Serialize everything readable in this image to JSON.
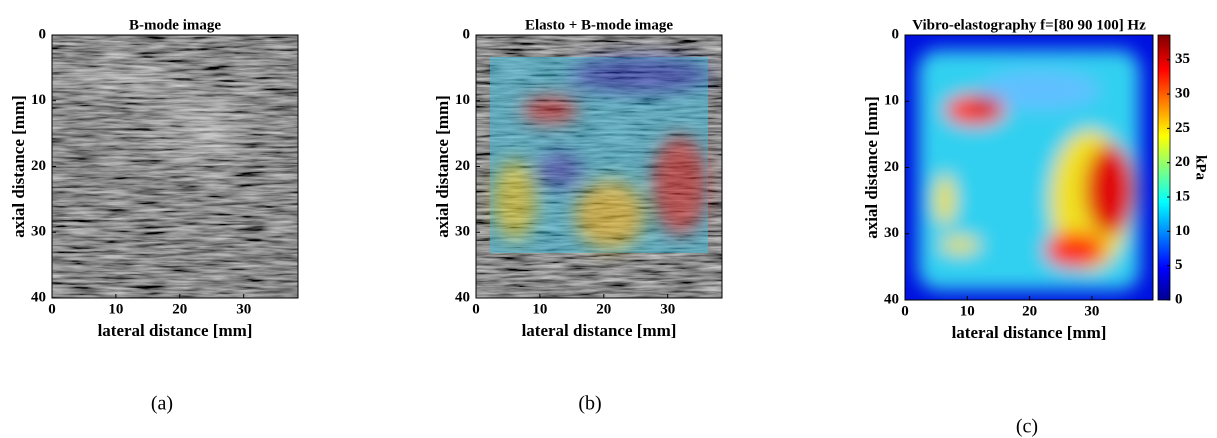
{
  "chart_data": [
    {
      "type": "image",
      "title": "B-mode image",
      "xlabel": "lateral distance [mm]",
      "ylabel": "axial distance [mm]",
      "xlim": [
        0,
        38.5
      ],
      "ylim": [
        0,
        40
      ],
      "xticks": [
        0,
        10,
        20,
        30
      ],
      "yticks": [
        0,
        10,
        20,
        30,
        40
      ],
      "caption": "(a)"
    },
    {
      "type": "image",
      "title": "Elasto + B-mode image",
      "xlabel": "lateral distance [mm]",
      "ylabel": "axial distance [mm]",
      "xlim": [
        0,
        38.5
      ],
      "ylim": [
        0,
        40
      ],
      "xticks": [
        0,
        10,
        20,
        30
      ],
      "yticks": [
        0,
        10,
        20,
        30,
        40
      ],
      "caption": "(b)"
    },
    {
      "type": "image",
      "title": "Vibro-elastography f=[80 90 100] Hz",
      "xlabel": "lateral distance [mm]",
      "ylabel": "axial distance [mm]",
      "xlim": [
        0,
        39.8
      ],
      "ylim": [
        0,
        40
      ],
      "xticks": [
        0,
        10,
        20,
        30
      ],
      "yticks": [
        0,
        10,
        20,
        30,
        40
      ],
      "clim": [
        0,
        38.6
      ],
      "cticks": [
        0,
        5,
        10,
        15,
        20,
        25,
        30,
        35
      ],
      "clabel": "kPa",
      "caption": "(c)"
    }
  ]
}
